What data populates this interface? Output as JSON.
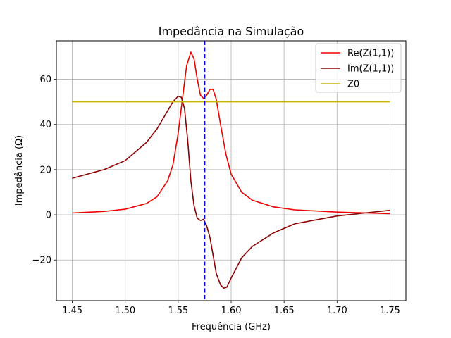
{
  "chart_data": {
    "type": "line",
    "title": "Impedância na Simulação",
    "xlabel": "Frequência (GHz)",
    "ylabel": "Impedância (Ω)",
    "xlim": [
      1.435,
      1.765
    ],
    "ylim": [
      -38,
      77
    ],
    "xticks": [
      1.45,
      1.5,
      1.55,
      1.6,
      1.65,
      1.7,
      1.75
    ],
    "xtick_labels": [
      "1.45",
      "1.50",
      "1.55",
      "1.60",
      "1.65",
      "1.70",
      "1.75"
    ],
    "yticks": [
      -20,
      0,
      20,
      40,
      60
    ],
    "ytick_labels": [
      "−20",
      "0",
      "20",
      "40",
      "60"
    ],
    "grid": true,
    "legend_position": "top-right",
    "series": [
      {
        "name": "Re(Z(1,1))",
        "color": "#ee0000",
        "x": [
          1.45,
          1.48,
          1.5,
          1.52,
          1.53,
          1.54,
          1.545,
          1.55,
          1.555,
          1.558,
          1.562,
          1.565,
          1.568,
          1.571,
          1.574,
          1.577,
          1.58,
          1.583,
          1.586,
          1.59,
          1.595,
          1.6,
          1.61,
          1.62,
          1.64,
          1.66,
          1.7,
          1.75
        ],
        "y": [
          0.8,
          1.5,
          2.5,
          5,
          8,
          15,
          22,
          36,
          55,
          66,
          72,
          69,
          60,
          53,
          51.5,
          53,
          55.5,
          55.5,
          51,
          40,
          27,
          18,
          10,
          6.5,
          3.5,
          2.2,
          1.2,
          0.5
        ]
      },
      {
        "name": "Im(Z(1,1))",
        "color": "#8b0000",
        "x": [
          1.45,
          1.48,
          1.5,
          1.52,
          1.53,
          1.54,
          1.545,
          1.55,
          1.553,
          1.556,
          1.559,
          1.562,
          1.565,
          1.568,
          1.571,
          1.574,
          1.577,
          1.58,
          1.583,
          1.586,
          1.59,
          1.593,
          1.596,
          1.6,
          1.61,
          1.62,
          1.64,
          1.66,
          1.7,
          1.75
        ],
        "y": [
          16.2,
          20,
          24,
          32,
          38,
          46,
          50,
          52.5,
          52,
          47,
          33,
          15,
          4,
          -1.5,
          -2.5,
          -2,
          -5,
          -10,
          -18,
          -26,
          -31,
          -32.5,
          -32,
          -28,
          -19,
          -14,
          -8,
          -4,
          -0.5,
          2
        ]
      },
      {
        "name": "Z0",
        "color": "#c8b400",
        "x": [
          1.45,
          1.75
        ],
        "y": [
          50,
          50
        ]
      }
    ],
    "vline": {
      "x": 1.575,
      "color": "#0000ee",
      "style": "dashed"
    }
  }
}
